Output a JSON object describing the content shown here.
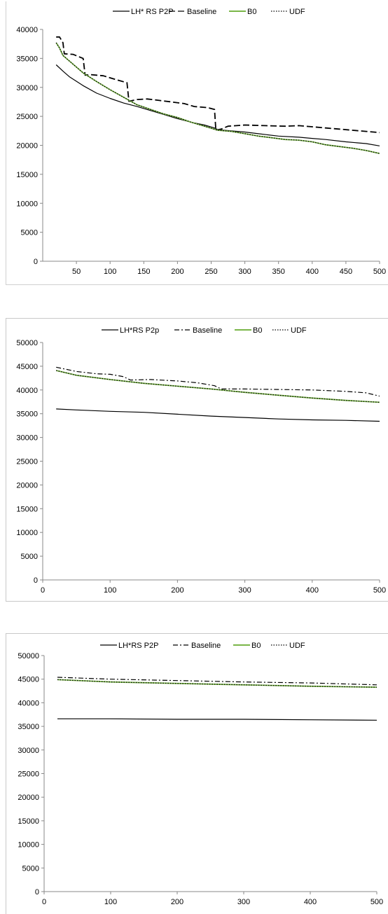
{
  "chart_data": [
    {
      "type": "line",
      "title": "",
      "xlabel": "",
      "ylabel": "",
      "xlim": [
        0,
        500
      ],
      "ylim": [
        0,
        40000
      ],
      "xticks": [
        "50",
        "100",
        "150",
        "200",
        "250",
        "300",
        "350",
        "400",
        "450",
        "500"
      ],
      "yticks": [
        "0",
        "5000",
        "10000",
        "15000",
        "20000",
        "25000",
        "30000",
        "35000",
        "40000"
      ],
      "grid": false,
      "legend_position": "top",
      "series": [
        {
          "name": "LH* RS P2P",
          "color": "#000000",
          "dash": "solid",
          "points": [
            [
              20,
              33900
            ],
            [
              30,
              32800
            ],
            [
              40,
              31800
            ],
            [
              60,
              30300
            ],
            [
              80,
              29000
            ],
            [
              100,
              28100
            ],
            [
              120,
              27300
            ],
            [
              140,
              26700
            ],
            [
              160,
              26000
            ],
            [
              180,
              25300
            ],
            [
              200,
              24600
            ],
            [
              220,
              24000
            ],
            [
              240,
              23500
            ],
            [
              255,
              23000
            ],
            [
              260,
              22700
            ],
            [
              280,
              22500
            ],
            [
              300,
              22300
            ],
            [
              320,
              22000
            ],
            [
              350,
              21600
            ],
            [
              380,
              21400
            ],
            [
              400,
              21200
            ],
            [
              420,
              21000
            ],
            [
              450,
              20600
            ],
            [
              480,
              20300
            ],
            [
              500,
              19900
            ]
          ]
        },
        {
          "name": "Baseline",
          "color": "#000000",
          "dash": "longdash",
          "points": [
            [
              20,
              38700
            ],
            [
              25,
              38700
            ],
            [
              30,
              37700
            ],
            [
              32,
              35800
            ],
            [
              45,
              35700
            ],
            [
              60,
              35000
            ],
            [
              63,
              32100
            ],
            [
              70,
              32200
            ],
            [
              90,
              32000
            ],
            [
              110,
              31300
            ],
            [
              125,
              30800
            ],
            [
              128,
              27600
            ],
            [
              140,
              27900
            ],
            [
              155,
              28000
            ],
            [
              170,
              27800
            ],
            [
              190,
              27500
            ],
            [
              210,
              27200
            ],
            [
              225,
              26700
            ],
            [
              245,
              26500
            ],
            [
              255,
              26200
            ],
            [
              257,
              22600
            ],
            [
              265,
              22800
            ],
            [
              275,
              23300
            ],
            [
              300,
              23500
            ],
            [
              330,
              23400
            ],
            [
              360,
              23300
            ],
            [
              380,
              23400
            ],
            [
              400,
              23200
            ],
            [
              420,
              23000
            ],
            [
              440,
              22800
            ],
            [
              460,
              22600
            ],
            [
              480,
              22400
            ],
            [
              500,
              22200
            ]
          ]
        },
        {
          "name": "B0",
          "color": "#7ab648",
          "dash": "solid",
          "points": [
            [
              20,
              37700
            ],
            [
              25,
              36800
            ],
            [
              30,
              35500
            ],
            [
              40,
              34500
            ],
            [
              60,
              32500
            ],
            [
              80,
              31000
            ],
            [
              100,
              29600
            ],
            [
              120,
              28300
            ],
            [
              140,
              27000
            ],
            [
              160,
              26200
            ],
            [
              180,
              25400
            ],
            [
              200,
              24800
            ],
            [
              220,
              24000
            ],
            [
              240,
              23300
            ],
            [
              260,
              22600
            ],
            [
              280,
              22400
            ],
            [
              300,
              22000
            ],
            [
              320,
              21600
            ],
            [
              340,
              21300
            ],
            [
              360,
              21000
            ],
            [
              380,
              20900
            ],
            [
              400,
              20600
            ],
            [
              420,
              20100
            ],
            [
              440,
              19800
            ],
            [
              460,
              19500
            ],
            [
              480,
              19100
            ],
            [
              500,
              18600
            ]
          ]
        },
        {
          "name": "UDF",
          "color": "#000000",
          "dash": "dotted",
          "points": [
            [
              20,
              37700
            ],
            [
              25,
              36800
            ],
            [
              30,
              35500
            ],
            [
              40,
              34500
            ],
            [
              60,
              32500
            ],
            [
              80,
              31000
            ],
            [
              100,
              29600
            ],
            [
              120,
              28300
            ],
            [
              140,
              27000
            ],
            [
              160,
              26200
            ],
            [
              180,
              25400
            ],
            [
              200,
              24800
            ],
            [
              220,
              24000
            ],
            [
              240,
              23300
            ],
            [
              260,
              22600
            ],
            [
              280,
              22400
            ],
            [
              300,
              22000
            ],
            [
              320,
              21600
            ],
            [
              340,
              21300
            ],
            [
              360,
              21000
            ],
            [
              380,
              20900
            ],
            [
              400,
              20600
            ],
            [
              420,
              20100
            ],
            [
              440,
              19800
            ],
            [
              460,
              19500
            ],
            [
              480,
              19100
            ],
            [
              500,
              18600
            ]
          ]
        }
      ]
    },
    {
      "type": "line",
      "title": "",
      "xlabel": "",
      "ylabel": "",
      "xlim": [
        0,
        500
      ],
      "ylim": [
        0,
        50000
      ],
      "xticks": [
        "0",
        "100",
        "200",
        "300",
        "400",
        "500"
      ],
      "yticks": [
        "0",
        "5000",
        "10000",
        "15000",
        "20000",
        "25000",
        "30000",
        "35000",
        "40000",
        "45000",
        "50000"
      ],
      "grid": false,
      "legend_position": "top",
      "series": [
        {
          "name": "LH*RS P2p",
          "color": "#000000",
          "dash": "solid",
          "points": [
            [
              20,
              36000
            ],
            [
              50,
              35800
            ],
            [
              100,
              35500
            ],
            [
              150,
              35300
            ],
            [
              200,
              34900
            ],
            [
              250,
              34500
            ],
            [
              300,
              34200
            ],
            [
              350,
              33900
            ],
            [
              400,
              33700
            ],
            [
              450,
              33600
            ],
            [
              500,
              33400
            ]
          ]
        },
        {
          "name": "Baseline",
          "color": "#000000",
          "dash": "dashdot",
          "points": [
            [
              20,
              44800
            ],
            [
              50,
              43900
            ],
            [
              80,
              43400
            ],
            [
              100,
              43300
            ],
            [
              120,
              42800
            ],
            [
              130,
              42100
            ],
            [
              160,
              42200
            ],
            [
              200,
              41900
            ],
            [
              230,
              41500
            ],
            [
              255,
              40900
            ],
            [
              265,
              40200
            ],
            [
              300,
              40200
            ],
            [
              350,
              40100
            ],
            [
              400,
              40000
            ],
            [
              450,
              39700
            ],
            [
              480,
              39400
            ],
            [
              500,
              38700
            ]
          ]
        },
        {
          "name": "B0",
          "color": "#7ab648",
          "dash": "solid",
          "points": [
            [
              20,
              44100
            ],
            [
              50,
              43100
            ],
            [
              100,
              42200
            ],
            [
              150,
              41400
            ],
            [
              200,
              40800
            ],
            [
              250,
              40200
            ],
            [
              300,
              39500
            ],
            [
              350,
              38900
            ],
            [
              400,
              38300
            ],
            [
              450,
              37800
            ],
            [
              500,
              37400
            ]
          ]
        },
        {
          "name": "UDF",
          "color": "#000000",
          "dash": "dotted",
          "points": [
            [
              20,
              44100
            ],
            [
              50,
              43100
            ],
            [
              100,
              42200
            ],
            [
              150,
              41400
            ],
            [
              200,
              40800
            ],
            [
              250,
              40200
            ],
            [
              300,
              39500
            ],
            [
              350,
              38900
            ],
            [
              400,
              38300
            ],
            [
              450,
              37800
            ],
            [
              500,
              37400
            ]
          ]
        }
      ]
    },
    {
      "type": "line",
      "title": "",
      "xlabel": "",
      "ylabel": "",
      "xlim": [
        0,
        500
      ],
      "ylim": [
        0,
        50000
      ],
      "xticks": [
        "0",
        "100",
        "200",
        "300",
        "400",
        "500"
      ],
      "yticks": [
        "0",
        "5000",
        "10000",
        "15000",
        "20000",
        "25000",
        "30000",
        "35000",
        "40000",
        "45000",
        "50000"
      ],
      "grid": false,
      "legend_position": "top",
      "series": [
        {
          "name": "LH*RS P2P",
          "color": "#000000",
          "dash": "solid",
          "points": [
            [
              20,
              36600
            ],
            [
              100,
              36600
            ],
            [
              200,
              36500
            ],
            [
              300,
              36500
            ],
            [
              400,
              36400
            ],
            [
              500,
              36300
            ]
          ]
        },
        {
          "name": "Baseline",
          "color": "#000000",
          "dash": "dashdot",
          "points": [
            [
              20,
              45400
            ],
            [
              100,
              45000
            ],
            [
              200,
              44700
            ],
            [
              300,
              44400
            ],
            [
              400,
              44200
            ],
            [
              500,
              43800
            ]
          ]
        },
        {
          "name": "B0",
          "color": "#7ab648",
          "dash": "solid",
          "points": [
            [
              20,
              44900
            ],
            [
              100,
              44400
            ],
            [
              200,
              44100
            ],
            [
              300,
              43800
            ],
            [
              400,
              43500
            ],
            [
              500,
              43300
            ]
          ]
        },
        {
          "name": "UDF",
          "color": "#000000",
          "dash": "dotted",
          "points": [
            [
              20,
              44900
            ],
            [
              100,
              44400
            ],
            [
              200,
              44100
            ],
            [
              300,
              43800
            ],
            [
              400,
              43500
            ],
            [
              500,
              43300
            ]
          ]
        }
      ]
    }
  ]
}
